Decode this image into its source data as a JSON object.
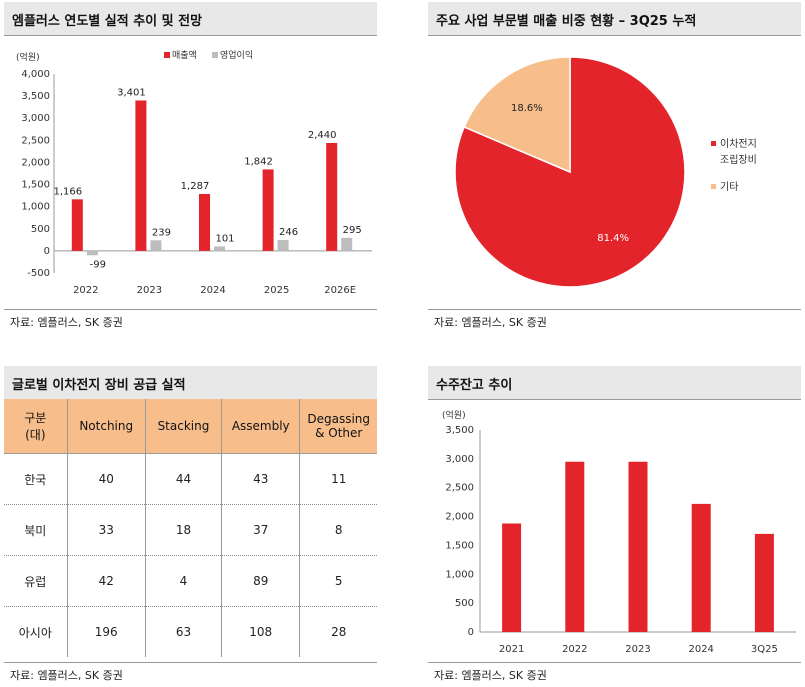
{
  "panels": {
    "p1_title": "엠플러스 연도별 실적 추이 및 전망",
    "p1_source": "자료: 엠플러스, SK 증권",
    "p2_title": "주요 사업 부문별 매출 비중 현황 – 3Q25 누적",
    "p2_source": "자료: 엠플러스, SK 증권",
    "p3_title": "글로벌 이차전지 장비 공급 실적",
    "p3_source": "자료: 엠플러스, SK 증권",
    "p4_title": "수주잔고 추이",
    "p4_source": "자료: 엠플러스, SK 증권"
  },
  "colors": {
    "red": "#e3242b",
    "gray": "#bdbdbd",
    "peach": "#f7be8b"
  },
  "chart_data": [
    {
      "type": "bar",
      "unit_label": "(억원)",
      "categories": [
        "2022",
        "2023",
        "2024",
        "2025",
        "2026E"
      ],
      "series": [
        {
          "name": "매출액",
          "values": [
            1166,
            3401,
            1287,
            1842,
            2440
          ],
          "labels": [
            "1,166",
            "3,401",
            "1,287",
            "1,842",
            "2,440"
          ]
        },
        {
          "name": "영업이익",
          "values": [
            -99,
            239,
            101,
            246,
            295
          ],
          "labels": [
            "-99",
            "239",
            "101",
            "246",
            "295"
          ]
        }
      ],
      "ylim": [
        -500,
        4000
      ],
      "yticks": [
        -500,
        0,
        500,
        1000,
        1500,
        2000,
        2500,
        3000,
        3500,
        4000
      ],
      "ytick_labels": [
        "-500",
        "0",
        "500",
        "1,000",
        "1,500",
        "2,000",
        "2,500",
        "3,000",
        "3,500",
        "4,000"
      ],
      "legend": "top-right"
    },
    {
      "type": "pie",
      "slices": [
        {
          "name": "이차전지 조립장비",
          "value": 81.4,
          "label": "81.4%"
        },
        {
          "name": "기타",
          "value": 18.6,
          "label": "18.6%"
        }
      ],
      "legend_lines": [
        [
          "이차전지",
          "조립장비"
        ],
        [
          "기타"
        ]
      ],
      "legend": "right"
    },
    {
      "type": "table",
      "columns": [
        "구분 (대)",
        "Notching",
        "Stacking",
        "Assembly",
        "Degassing & Other"
      ],
      "rows": [
        [
          "한국",
          "40",
          "44",
          "43",
          "11"
        ],
        [
          "북미",
          "33",
          "18",
          "37",
          "8"
        ],
        [
          "유럽",
          "42",
          "4",
          "89",
          "5"
        ],
        [
          "아시아",
          "196",
          "63",
          "108",
          "28"
        ]
      ]
    },
    {
      "type": "bar",
      "unit_label": "(억원)",
      "categories": [
        "2021",
        "2022",
        "2023",
        "2024",
        "3Q25"
      ],
      "values": [
        1880,
        2950,
        2950,
        2220,
        1700
      ],
      "ylim": [
        0,
        3500
      ],
      "yticks": [
        0,
        500,
        1000,
        1500,
        2000,
        2500,
        3000,
        3500
      ],
      "ytick_labels": [
        "0",
        "500",
        "1,000",
        "1,500",
        "2,000",
        "2,500",
        "3,000",
        "3,500"
      ]
    }
  ],
  "table_header_lines": [
    [
      "구분",
      "(대)"
    ],
    [
      "Notching"
    ],
    [
      "Stacking"
    ],
    [
      "Assembly"
    ],
    [
      "Degassing",
      "& Other"
    ]
  ]
}
